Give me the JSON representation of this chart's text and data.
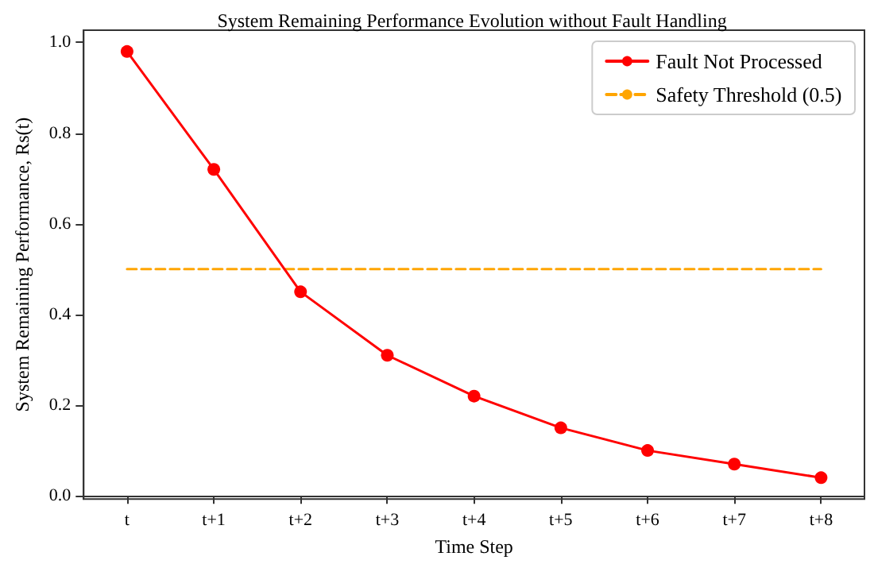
{
  "chart_data": {
    "type": "line",
    "title": "System Remaining Performance Evolution without Fault Handling",
    "xlabel": "Time Step",
    "ylabel": "System Remaining Performance, Rs(t)",
    "categories": [
      "t",
      "t+1",
      "t+2",
      "t+3",
      "t+4",
      "t+5",
      "t+6",
      "t+7",
      "t+8"
    ],
    "series": [
      {
        "name": "Fault Not Processed",
        "color": "#ff0000",
        "marker": "circle",
        "line_style": "solid",
        "values": [
          0.98,
          0.72,
          0.45,
          0.31,
          0.22,
          0.15,
          0.1,
          0.07,
          0.04
        ]
      },
      {
        "name": "Safety Threshold (0.5)",
        "color": "#ffa500",
        "marker": "none",
        "line_style": "dashed",
        "values": [
          0.5,
          0.5,
          0.5,
          0.5,
          0.5,
          0.5,
          0.5,
          0.5,
          0.5
        ]
      }
    ],
    "ylim": [
      -0.007,
      1.027
    ],
    "yticks": [
      {
        "value": 0,
        "label": "0.0"
      },
      0.2,
      0.4,
      0.6,
      0.8,
      {
        "value": 1,
        "label": "1.0"
      }
    ],
    "grid": false,
    "legend": "top right"
  }
}
